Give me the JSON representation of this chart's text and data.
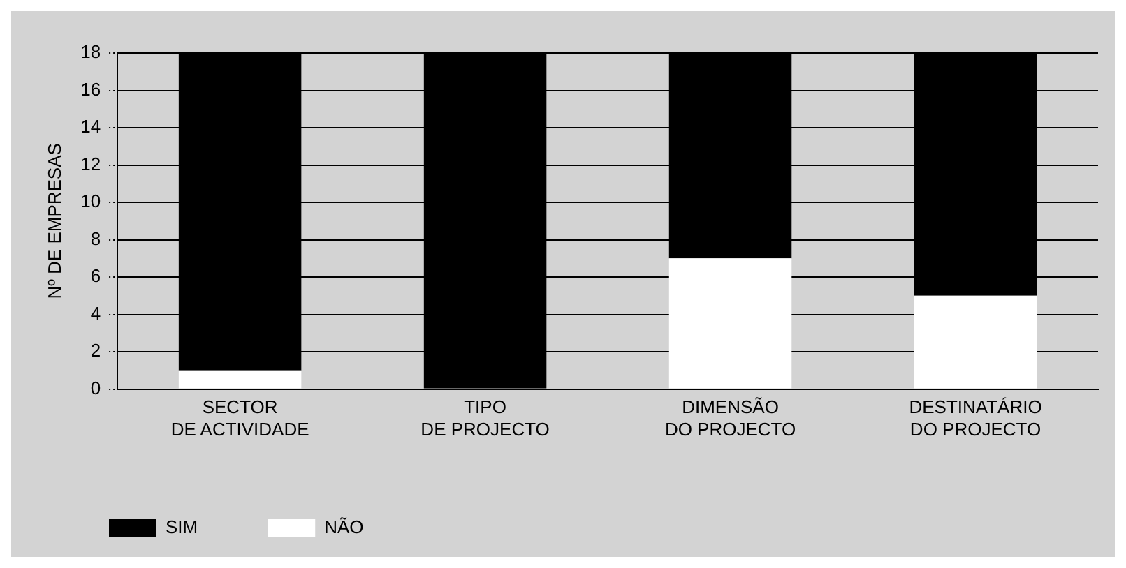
{
  "chart_data": {
    "type": "bar",
    "stacked": true,
    "ylabel": "Nº DE EMPRESAS",
    "categories": [
      "SECTOR\nDE ACTIVIDADE",
      "TIPO\nDE PROJECTO",
      "DIMENSÃO\nDO PROJECTO",
      "DESTINATÁRIO\nDO PROJECTO"
    ],
    "series": [
      {
        "name": "NÃO",
        "color": "#ffffff",
        "values": [
          1,
          0,
          7,
          5
        ]
      },
      {
        "name": "SIM",
        "color": "#000000",
        "values": [
          17,
          18,
          11,
          13
        ]
      }
    ],
    "ylim": [
      0,
      18
    ],
    "yticks": [
      0,
      2,
      4,
      6,
      8,
      10,
      12,
      14,
      16,
      18
    ],
    "grid": "y",
    "legend": "bottom left"
  }
}
